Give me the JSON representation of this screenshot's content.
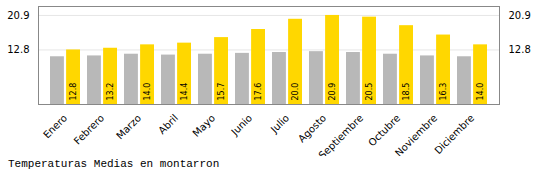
{
  "chart_data": {
    "type": "bar",
    "title": "Temperaturas Medias en montarron",
    "categories": [
      "Enero",
      "Febrero",
      "Marzo",
      "Abril",
      "Mayo",
      "Junio",
      "Julio",
      "Agosto",
      "Septiembre",
      "Octubre",
      "Noviembre",
      "Diciembre"
    ],
    "series": [
      {
        "color": "#B8B8B8",
        "values": [
          11.2,
          11.4,
          11.8,
          11.6,
          11.8,
          12.0,
          12.2,
          12.4,
          12.2,
          11.8,
          11.4,
          11.2
        ]
      },
      {
        "color": "#FFD700",
        "values": [
          12.8,
          13.2,
          14.0,
          14.4,
          15.7,
          17.6,
          20.0,
          20.9,
          20.5,
          18.5,
          16.3,
          14.0
        ],
        "data_labels": true,
        "value_labels": [
          "12.8",
          "13.2",
          "14.0",
          "14.4",
          "15.7",
          "17.6",
          "20.0",
          "20.9",
          "20.5",
          "18.5",
          "16.3",
          "14.0"
        ]
      }
    ],
    "ylim": [
      0,
      23.0
    ],
    "yticks": [
      12.8,
      20.9
    ],
    "grid": true
  }
}
